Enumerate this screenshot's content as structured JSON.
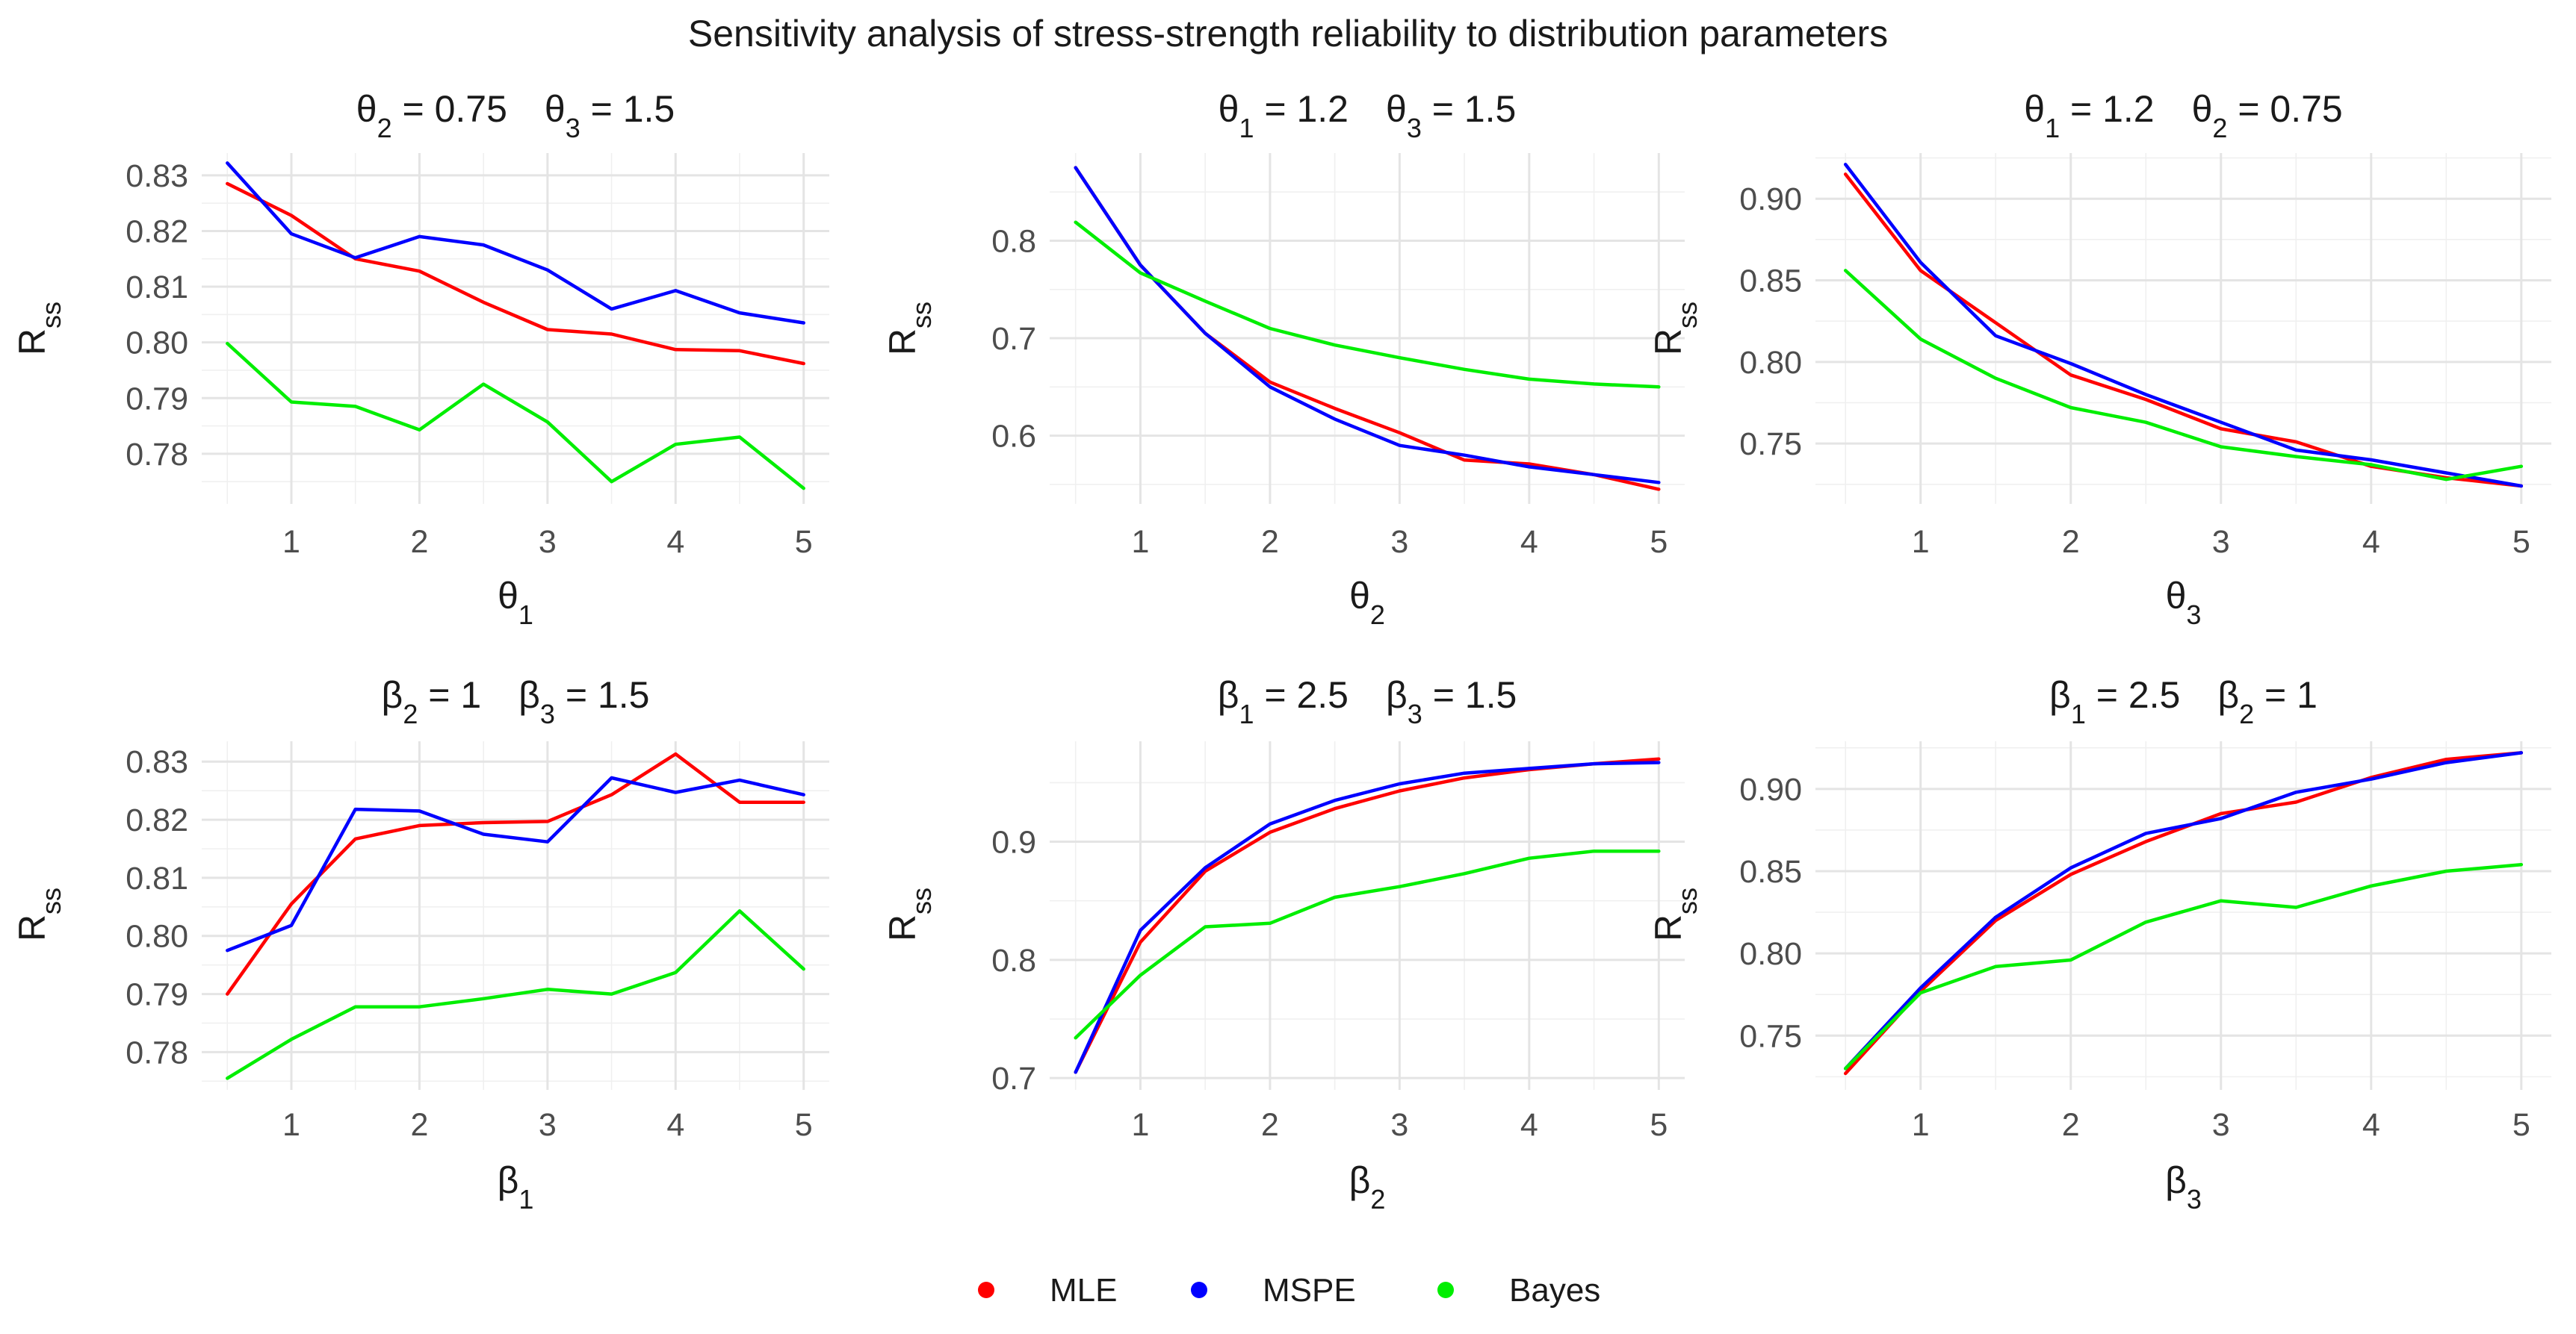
{
  "title": "Sensitivity analysis of stress-strength reliability to distribution parameters",
  "legend": [
    {
      "name": "MLE",
      "color": "#ff0000"
    },
    {
      "name": "MSPE",
      "color": "#0000ff"
    },
    {
      "name": "Bayes",
      "color": "#00ee00"
    }
  ],
  "chart_data": [
    {
      "type": "line",
      "panel_title": {
        "fixed1": {
          "sym": "θ",
          "sub": "2",
          "val": "0.75"
        },
        "fixed2": {
          "sym": "θ",
          "sub": "3",
          "val": "1.5"
        }
      },
      "xlabel": {
        "sym": "θ",
        "sub": "1"
      },
      "ylabel": {
        "sym": "R",
        "sub": "ss"
      },
      "x": [
        0.5,
        1,
        1.5,
        2,
        2.5,
        3,
        3.5,
        4,
        4.5,
        5
      ],
      "xlim": [
        0.3,
        5.2
      ],
      "ylim": [
        0.771,
        0.834
      ],
      "xticks": [
        1,
        2,
        3,
        4,
        5
      ],
      "yticks": [
        0.78,
        0.79,
        0.8,
        0.81,
        0.82,
        0.83
      ],
      "ytick_labels": [
        "0.78",
        "0.79",
        "0.80",
        "0.81",
        "0.82",
        "0.83"
      ],
      "series": [
        {
          "name": "MLE",
          "values": [
            0.8285,
            0.8228,
            0.815,
            0.8128,
            0.8072,
            0.8023,
            0.8015,
            0.7987,
            0.7985,
            0.7962
          ]
        },
        {
          "name": "MSPE",
          "values": [
            0.8322,
            0.8195,
            0.8152,
            0.819,
            0.8175,
            0.813,
            0.806,
            0.8093,
            0.8053,
            0.8035
          ]
        },
        {
          "name": "Bayes",
          "values": [
            0.7998,
            0.7893,
            0.7885,
            0.7843,
            0.7925,
            0.7857,
            0.775,
            0.7817,
            0.783,
            0.7738
          ]
        }
      ]
    },
    {
      "type": "line",
      "panel_title": {
        "fixed1": {
          "sym": "θ",
          "sub": "1",
          "val": "1.2"
        },
        "fixed2": {
          "sym": "θ",
          "sub": "3",
          "val": "1.5"
        }
      },
      "xlabel": {
        "sym": "θ",
        "sub": "2"
      },
      "ylabel": {
        "sym": "R",
        "sub": "ss"
      },
      "x": [
        0.5,
        1,
        1.5,
        2,
        2.5,
        3,
        3.5,
        4,
        4.5,
        5
      ],
      "xlim": [
        0.3,
        5.2
      ],
      "ylim": [
        0.53,
        0.89
      ],
      "xticks": [
        1,
        2,
        3,
        4,
        5
      ],
      "yticks": [
        0.6,
        0.7,
        0.8
      ],
      "ytick_labels": [
        "0.6",
        "0.7",
        "0.8"
      ],
      "series": [
        {
          "name": "MLE",
          "values": [
            0.875,
            0.775,
            0.705,
            0.655,
            0.628,
            0.603,
            0.575,
            0.571,
            0.56,
            0.545
          ]
        },
        {
          "name": "MSPE",
          "values": [
            0.875,
            0.775,
            0.705,
            0.65,
            0.617,
            0.59,
            0.58,
            0.568,
            0.56,
            0.552
          ]
        },
        {
          "name": "Bayes",
          "values": [
            0.819,
            0.767,
            0.738,
            0.71,
            0.693,
            0.68,
            0.668,
            0.658,
            0.653,
            0.65
          ]
        }
      ]
    },
    {
      "type": "line",
      "panel_title": {
        "fixed1": {
          "sym": "θ",
          "sub": "1",
          "val": "1.2"
        },
        "fixed2": {
          "sym": "θ",
          "sub": "2",
          "val": "0.75"
        }
      },
      "xlabel": {
        "sym": "θ",
        "sub": "3"
      },
      "ylabel": {
        "sym": "R",
        "sub": "ss"
      },
      "x": [
        0.5,
        1,
        1.5,
        2,
        2.5,
        3,
        3.5,
        4,
        4.5,
        5
      ],
      "xlim": [
        0.3,
        5.2
      ],
      "ylim": [
        0.713,
        0.928
      ],
      "xticks": [
        1,
        2,
        3,
        4,
        5
      ],
      "yticks": [
        0.75,
        0.8,
        0.85,
        0.9
      ],
      "ytick_labels": [
        "0.75",
        "0.80",
        "0.85",
        "0.90"
      ],
      "series": [
        {
          "name": "MLE",
          "values": [
            0.915,
            0.856,
            0.824,
            0.792,
            0.777,
            0.759,
            0.751,
            0.736,
            0.729,
            0.724
          ]
        },
        {
          "name": "MSPE",
          "values": [
            0.921,
            0.861,
            0.816,
            0.799,
            0.78,
            0.763,
            0.746,
            0.74,
            0.732,
            0.724
          ]
        },
        {
          "name": "Bayes",
          "values": [
            0.856,
            0.814,
            0.79,
            0.772,
            0.763,
            0.748,
            0.742,
            0.737,
            0.728,
            0.736
          ]
        }
      ]
    },
    {
      "type": "line",
      "panel_title": {
        "fixed1": {
          "sym": "β",
          "sub": "2",
          "val": "1"
        },
        "fixed2": {
          "sym": "β",
          "sub": "3",
          "val": "1.5"
        }
      },
      "xlabel": {
        "sym": "β",
        "sub": "1"
      },
      "ylabel": {
        "sym": "R",
        "sub": "ss"
      },
      "x": [
        0.5,
        1,
        1.5,
        2,
        2.5,
        3,
        3.5,
        4,
        4.5,
        5
      ],
      "xlim": [
        0.3,
        5.2
      ],
      "ylim": [
        0.7735,
        0.8335
      ],
      "xticks": [
        1,
        2,
        3,
        4,
        5
      ],
      "yticks": [
        0.78,
        0.79,
        0.8,
        0.81,
        0.82,
        0.83
      ],
      "ytick_labels": [
        "0.78",
        "0.79",
        "0.80",
        "0.81",
        "0.82",
        "0.83"
      ],
      "series": [
        {
          "name": "MLE",
          "values": [
            0.79,
            0.8055,
            0.8167,
            0.819,
            0.8195,
            0.8197,
            0.8243,
            0.8313,
            0.823,
            0.823
          ]
        },
        {
          "name": "MSPE",
          "values": [
            0.7975,
            0.8018,
            0.8218,
            0.8215,
            0.8175,
            0.8162,
            0.8272,
            0.8247,
            0.8268,
            0.8243
          ]
        },
        {
          "name": "Bayes",
          "values": [
            0.7755,
            0.7822,
            0.7878,
            0.7878,
            0.7892,
            0.7908,
            0.79,
            0.7937,
            0.8043,
            0.7943
          ]
        }
      ]
    },
    {
      "type": "line",
      "panel_title": {
        "fixed1": {
          "sym": "β",
          "sub": "1",
          "val": "2.5"
        },
        "fixed2": {
          "sym": "β",
          "sub": "3",
          "val": "1.5"
        }
      },
      "xlabel": {
        "sym": "β",
        "sub": "2"
      },
      "ylabel": {
        "sym": "R",
        "sub": "ss"
      },
      "x": [
        0.5,
        1,
        1.5,
        2,
        2.5,
        3,
        3.5,
        4,
        4.5,
        5
      ],
      "xlim": [
        0.3,
        5.2
      ],
      "ylim": [
        0.69,
        0.985
      ],
      "xticks": [
        1,
        2,
        3,
        4,
        5
      ],
      "yticks": [
        0.7,
        0.8,
        0.9
      ],
      "ytick_labels": [
        "0.7",
        "0.8",
        "0.9"
      ],
      "series": [
        {
          "name": "MLE",
          "values": [
            0.705,
            0.815,
            0.875,
            0.908,
            0.928,
            0.943,
            0.954,
            0.961,
            0.966,
            0.97
          ]
        },
        {
          "name": "MSPE",
          "values": [
            0.705,
            0.825,
            0.878,
            0.915,
            0.935,
            0.949,
            0.958,
            0.962,
            0.966,
            0.967
          ]
        },
        {
          "name": "Bayes",
          "values": [
            0.734,
            0.787,
            0.828,
            0.831,
            0.853,
            0.862,
            0.873,
            0.886,
            0.892,
            0.892
          ]
        }
      ]
    },
    {
      "type": "line",
      "panel_title": {
        "fixed1": {
          "sym": "β",
          "sub": "1",
          "val": "2.5"
        },
        "fixed2": {
          "sym": "β",
          "sub": "2",
          "val": "1"
        }
      },
      "xlabel": {
        "sym": "β",
        "sub": "3"
      },
      "ylabel": {
        "sym": "R",
        "sub": "ss"
      },
      "x": [
        0.5,
        1,
        1.5,
        2,
        2.5,
        3,
        3.5,
        4,
        4.5,
        5
      ],
      "xlim": [
        0.3,
        5.2
      ],
      "ylim": [
        0.717,
        0.929
      ],
      "xticks": [
        1,
        2,
        3,
        4,
        5
      ],
      "yticks": [
        0.75,
        0.8,
        0.85,
        0.9
      ],
      "ytick_labels": [
        "0.75",
        "0.80",
        "0.85",
        "0.90"
      ],
      "series": [
        {
          "name": "MLE",
          "values": [
            0.727,
            0.777,
            0.82,
            0.848,
            0.868,
            0.885,
            0.892,
            0.907,
            0.918,
            0.922
          ]
        },
        {
          "name": "MSPE",
          "values": [
            0.73,
            0.779,
            0.822,
            0.852,
            0.873,
            0.882,
            0.898,
            0.906,
            0.916,
            0.922
          ]
        },
        {
          "name": "Bayes",
          "values": [
            0.73,
            0.776,
            0.792,
            0.796,
            0.819,
            0.832,
            0.828,
            0.841,
            0.85,
            0.854
          ]
        }
      ]
    }
  ]
}
